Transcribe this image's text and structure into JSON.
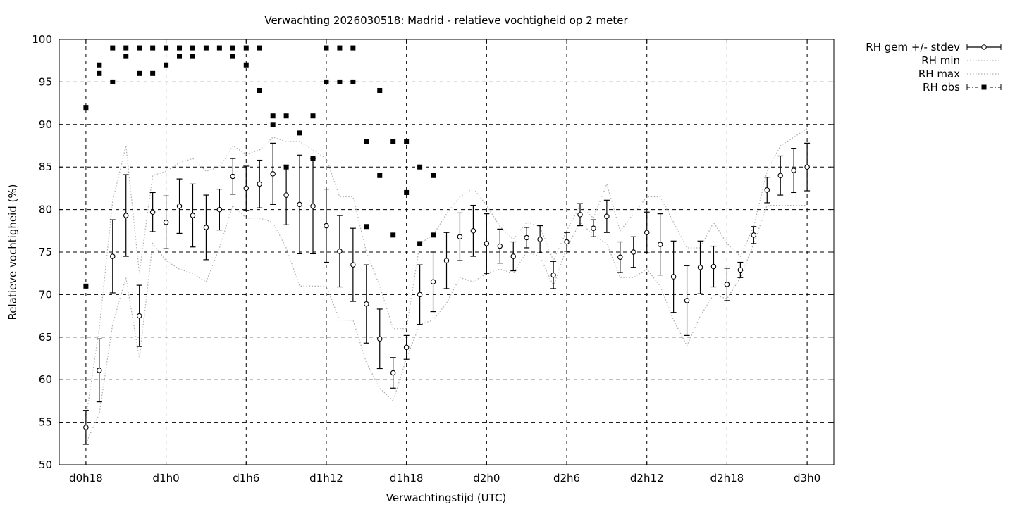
{
  "chart_data": {
    "type": "line",
    "title": "Verwachting 2026030518: Madrid - relatieve vochtigheid op 2 meter",
    "xlabel": "Verwachtingstijd (UTC)",
    "ylabel": "Relatieve vochtigheid (%)",
    "xlim": [
      -2,
      56
    ],
    "ylim": [
      50,
      100
    ],
    "yticks": [
      50,
      55,
      60,
      65,
      70,
      75,
      80,
      85,
      90,
      95,
      100
    ],
    "xticks": [
      {
        "value": 0,
        "label": "d0h18"
      },
      {
        "value": 6,
        "label": "d1h0"
      },
      {
        "value": 12,
        "label": "d1h6"
      },
      {
        "value": 18,
        "label": "d1h12"
      },
      {
        "value": 24,
        "label": "d1h18"
      },
      {
        "value": 30,
        "label": "d2h0"
      },
      {
        "value": 36,
        "label": "d2h6"
      },
      {
        "value": 42,
        "label": "d2h12"
      },
      {
        "value": 48,
        "label": "d2h18"
      },
      {
        "value": 54,
        "label": "d3h0"
      }
    ],
    "grid": true,
    "legend_position": "outside-top-right",
    "x_unit": "hours since d0h18",
    "series": [
      {
        "name": "RH gem +/- stdev",
        "style": "errorbars",
        "color": "#000000",
        "points": [
          [
            0,
            54.4,
            2.0
          ],
          [
            1,
            61.1,
            3.7
          ],
          [
            2,
            74.5,
            4.3
          ],
          [
            3,
            79.3,
            4.8
          ],
          [
            4,
            67.5,
            3.6
          ],
          [
            5,
            79.7,
            2.3
          ],
          [
            6,
            78.5,
            3.1
          ],
          [
            7,
            80.4,
            3.2
          ],
          [
            8,
            79.3,
            3.7
          ],
          [
            9,
            77.9,
            3.8
          ],
          [
            10,
            80.0,
            2.4
          ],
          [
            11,
            83.9,
            2.1
          ],
          [
            12,
            82.5,
            2.6
          ],
          [
            13,
            83.0,
            2.8
          ],
          [
            14,
            84.2,
            3.6
          ],
          [
            15,
            81.7,
            3.5
          ],
          [
            16,
            80.6,
            5.8
          ],
          [
            17,
            80.4,
            5.6
          ],
          [
            18,
            78.1,
            4.3
          ],
          [
            19,
            75.1,
            4.2
          ],
          [
            20,
            73.5,
            4.3
          ],
          [
            21,
            68.9,
            4.6
          ],
          [
            22,
            64.8,
            3.5
          ],
          [
            23,
            60.8,
            1.8
          ],
          [
            24,
            63.8,
            1.4
          ],
          [
            25,
            70.0,
            3.5
          ],
          [
            26,
            71.5,
            3.5
          ],
          [
            27,
            74.0,
            3.3
          ],
          [
            28,
            76.8,
            2.8
          ],
          [
            29,
            77.5,
            3.0
          ],
          [
            30,
            76.0,
            3.5
          ],
          [
            31,
            75.7,
            2.0
          ],
          [
            32,
            74.5,
            1.7
          ],
          [
            33,
            76.7,
            1.2
          ],
          [
            34,
            76.5,
            1.6
          ],
          [
            35,
            72.3,
            1.6
          ],
          [
            36,
            76.2,
            1.1
          ],
          [
            37,
            79.4,
            1.3
          ],
          [
            38,
            77.8,
            1.0
          ],
          [
            39,
            79.2,
            1.9
          ],
          [
            40,
            74.4,
            1.8
          ],
          [
            41,
            75.0,
            1.8
          ],
          [
            42,
            77.3,
            2.4
          ],
          [
            43,
            75.9,
            3.6
          ],
          [
            44,
            72.1,
            4.2
          ],
          [
            45,
            69.3,
            4.1
          ],
          [
            46,
            73.2,
            3.1
          ],
          [
            47,
            73.3,
            2.4
          ],
          [
            48,
            71.2,
            1.9
          ],
          [
            49,
            72.9,
            0.9
          ],
          [
            50,
            77.0,
            1.0
          ],
          [
            51,
            82.3,
            1.5
          ],
          [
            52,
            84.0,
            2.3
          ],
          [
            53,
            84.6,
            2.6
          ],
          [
            54,
            85.0,
            2.8
          ]
        ]
      },
      {
        "name": "RH min",
        "style": "dotted",
        "color": "#b0b0b0",
        "x": [
          0,
          1,
          2,
          3,
          4,
          5,
          6,
          7,
          8,
          9,
          10,
          11,
          12,
          13,
          14,
          15,
          16,
          17,
          18,
          19,
          20,
          21,
          22,
          23,
          24,
          25,
          26,
          27,
          28,
          29,
          30,
          31,
          32,
          33,
          34,
          35,
          36,
          37,
          38,
          39,
          40,
          41,
          42,
          43,
          44,
          45,
          46,
          47,
          48,
          49,
          50,
          51,
          52,
          53,
          54
        ],
        "values": [
          52.5,
          56.0,
          66.5,
          72.0,
          62.5,
          76.0,
          74.0,
          73.0,
          72.5,
          71.5,
          75.5,
          80.5,
          79.0,
          79.0,
          78.5,
          75.5,
          71.0,
          71.0,
          71.0,
          67.0,
          67.0,
          62.0,
          59.0,
          57.5,
          62.5,
          66.5,
          67.0,
          69.0,
          72.0,
          71.5,
          72.5,
          73.0,
          72.5,
          75.0,
          74.5,
          71.0,
          75.5,
          78.5,
          77.0,
          76.0,
          72.0,
          72.0,
          73.0,
          71.0,
          67.0,
          64.0,
          67.5,
          70.0,
          69.5,
          72.0,
          76.0,
          80.5,
          80.5,
          80.5,
          80.5
        ]
      },
      {
        "name": "RH max",
        "style": "dotted",
        "color": "#b0b0b0",
        "x": [
          0,
          1,
          2,
          3,
          4,
          5,
          6,
          7,
          8,
          9,
          10,
          11,
          12,
          13,
          14,
          15,
          16,
          17,
          18,
          19,
          20,
          21,
          22,
          23,
          24,
          25,
          26,
          27,
          28,
          29,
          30,
          31,
          32,
          33,
          34,
          35,
          36,
          37,
          38,
          39,
          40,
          41,
          42,
          43,
          44,
          45,
          46,
          47,
          48,
          49,
          50,
          51,
          52,
          53,
          54
        ],
        "values": [
          55.5,
          66.0,
          81.0,
          87.5,
          72.5,
          84.0,
          84.5,
          85.5,
          86.0,
          84.5,
          85.0,
          87.5,
          86.5,
          87.0,
          88.5,
          88.0,
          88.0,
          87.0,
          86.0,
          81.5,
          81.5,
          75.0,
          71.0,
          66.0,
          66.0,
          76.0,
          77.0,
          79.5,
          81.5,
          82.5,
          80.5,
          78.0,
          76.5,
          78.5,
          78.0,
          74.0,
          77.5,
          80.5,
          79.0,
          83.0,
          77.5,
          79.5,
          81.5,
          81.5,
          78.5,
          75.5,
          75.5,
          78.5,
          76.0,
          74.5,
          78.0,
          84.5,
          87.5,
          88.5,
          89.5
        ]
      },
      {
        "name": "RH obs",
        "style": "markers",
        "color": "#000000",
        "points": [
          [
            0,
            92
          ],
          [
            0,
            71
          ],
          [
            1,
            97
          ],
          [
            1,
            96
          ],
          [
            2,
            99
          ],
          [
            2,
            95
          ],
          [
            3,
            99
          ],
          [
            3,
            98
          ],
          [
            4,
            99
          ],
          [
            4,
            96
          ],
          [
            5,
            99
          ],
          [
            5,
            96
          ],
          [
            6,
            99
          ],
          [
            6,
            97
          ],
          [
            7,
            99
          ],
          [
            7,
            98
          ],
          [
            8,
            99
          ],
          [
            8,
            98
          ],
          [
            9,
            99
          ],
          [
            10,
            99
          ],
          [
            11,
            99
          ],
          [
            11,
            98
          ],
          [
            12,
            99
          ],
          [
            12,
            97
          ],
          [
            13,
            99
          ],
          [
            13,
            94
          ],
          [
            14,
            91
          ],
          [
            14,
            90
          ],
          [
            15,
            91
          ],
          [
            15,
            85
          ],
          [
            16,
            89
          ],
          [
            17,
            91
          ],
          [
            17,
            86
          ],
          [
            18,
            99
          ],
          [
            18,
            95
          ],
          [
            19,
            99
          ],
          [
            19,
            95
          ],
          [
            20,
            99
          ],
          [
            20,
            95
          ],
          [
            21,
            88
          ],
          [
            21,
            78
          ],
          [
            22,
            94
          ],
          [
            22,
            84
          ],
          [
            23,
            88
          ],
          [
            23,
            77
          ],
          [
            24,
            88
          ],
          [
            24,
            82
          ],
          [
            25,
            85
          ],
          [
            25,
            76
          ],
          [
            26,
            84
          ],
          [
            26,
            77
          ]
        ]
      }
    ]
  }
}
